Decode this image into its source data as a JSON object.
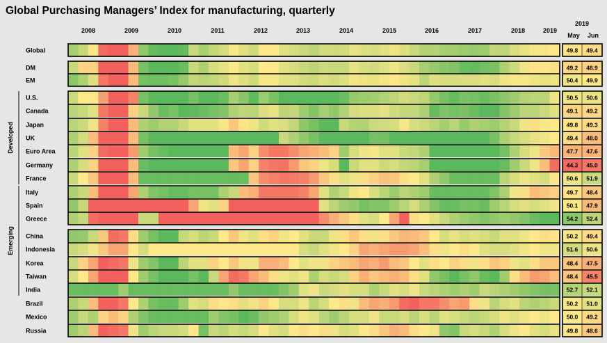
{
  "chart_data": {
    "type": "heatmap",
    "title": "Global Purchasing Managers’ Index for manufacturing, quarterly",
    "years": [
      "2008",
      "2009",
      "2010",
      "2011",
      "2012",
      "2013",
      "2014",
      "2015",
      "2016",
      "2017",
      "2018",
      "2019"
    ],
    "latest_header": {
      "year": "2019",
      "months": [
        "May",
        "Jun"
      ]
    },
    "groups": [
      {
        "label": "Developed",
        "first_row": 3,
        "last_row": 9
      },
      {
        "label": "Emerging",
        "first_row": 10,
        "last_row": 17
      }
    ],
    "color_scale": {
      "low": 44,
      "mid": 50,
      "high": 56,
      "low_color": "#f2615e",
      "mid_color": "#fde98a",
      "high_color": "#5cb85c"
    },
    "rows": [
      {
        "label": "Global",
        "values": [
          53.2,
          52.0,
          50.2,
          44.5,
          42.0,
          43.0,
          47.5,
          54.0,
          55.6,
          56.4,
          56.5,
          55.6,
          52.0,
          53.1,
          52.2,
          51.5,
          50.2,
          51.0,
          51.7,
          50.0,
          50.1,
          51.1,
          51.5,
          51.9,
          52.4,
          51.6,
          51.7,
          51.6,
          50.8,
          51.2,
          51.4,
          51.1,
          50.6,
          51.2,
          51.9,
          52.8,
          52.7,
          53.2,
          53.4,
          53.5,
          53.7,
          53.5,
          52.2,
          52.3,
          51.3,
          50.8,
          50.2,
          50.2,
          50.0
        ],
        "may": "49.8",
        "jun": "49.4"
      },
      {
        "label": "DM",
        "values": [
          52.0,
          49.0,
          49.0,
          44.0,
          42.0,
          43.0,
          48.0,
          55.0,
          56.4,
          56.8,
          56.5,
          55.5,
          52.0,
          53.0,
          51.5,
          50.8,
          50.1,
          51.0,
          51.5,
          50.0,
          49.9,
          51.0,
          51.5,
          52.0,
          52.4,
          51.8,
          52.0,
          52.0,
          50.8,
          51.4,
          51.6,
          51.1,
          50.6,
          51.3,
          52.0,
          53.2,
          53.8,
          54.3,
          54.6,
          55.5,
          55.6,
          55.1,
          54.8,
          53.0,
          51.8,
          50.5,
          49.8,
          49.8,
          49.5
        ],
        "may": "49.2",
        "jun": "48.9"
      },
      {
        "label": "EM",
        "values": [
          54.2,
          53.0,
          51.2,
          45.0,
          44.0,
          44.0,
          48.0,
          55.0,
          55.3,
          55.3,
          54.8,
          53.8,
          52.2,
          52.5,
          52.2,
          51.7,
          50.5,
          51.2,
          51.7,
          50.3,
          50.2,
          51.0,
          51.1,
          51.6,
          51.8,
          51.3,
          51.6,
          51.2,
          50.4,
          50.6,
          50.7,
          50.4,
          50.1,
          50.5,
          50.9,
          52.4,
          51.2,
          51.4,
          51.4,
          51.3,
          51.3,
          51.0,
          51.3,
          50.5,
          50.2,
          50.3,
          50.5,
          50.8,
          50.6
        ],
        "may": "50.4",
        "jun": "49.9"
      },
      {
        "label": "U.S.",
        "values": [
          51.8,
          50.0,
          50.0,
          46.8,
          44.0,
          44.0,
          45.5,
          55.0,
          56.5,
          57.0,
          56.0,
          57.0,
          55.0,
          56.8,
          56.0,
          55.5,
          53.2,
          54.3,
          55.8,
          53.6,
          54.8,
          56.2,
          56.2,
          56.6,
          56.8,
          56.4,
          56.2,
          55.4,
          53.9,
          53.5,
          53.4,
          52.8,
          52.3,
          51.6,
          52.0,
          52.3,
          53.9,
          55.0,
          55.6,
          54.8,
          55.0,
          55.4,
          54.8,
          54.2,
          53.5,
          52.7,
          52.5,
          52.4,
          50.5
        ],
        "may": "50.5",
        "jun": "50.6"
      },
      {
        "label": "Canada",
        "values": [
          52.5,
          52.0,
          51.0,
          45.0,
          43.0,
          43.0,
          49.0,
          52.0,
          54.0,
          55.5,
          55.0,
          56.0,
          55.8,
          55.5,
          55.0,
          54.6,
          52.8,
          52.3,
          52.5,
          51.2,
          50.8,
          52.4,
          52.1,
          53.5,
          54.5,
          53.2,
          54.0,
          52.8,
          51.5,
          51.2,
          51.2,
          50.9,
          51.7,
          52.2,
          52.2,
          53.0,
          55.6,
          54.7,
          55.0,
          54.8,
          55.5,
          56.0,
          56.0,
          54.5,
          53.6,
          52.4,
          52.5,
          51.8,
          51.0
        ],
        "may": "49.1",
        "jun": "49.2"
      },
      {
        "label": "Japan",
        "values": [
          52.5,
          51.8,
          50.5,
          45.5,
          42.0,
          44.0,
          48.0,
          53.0,
          53.5,
          52.8,
          52.8,
          52.0,
          51.0,
          51.0,
          51.0,
          50.2,
          48.5,
          49.8,
          50.6,
          51.7,
          51.0,
          51.3,
          52.2,
          54.2,
          55.0,
          56.5,
          56.4,
          52.0,
          52.7,
          52.8,
          51.8,
          51.6,
          51.4,
          50.2,
          51.4,
          51.8,
          52.5,
          53.3,
          52.5,
          53.8,
          52.9,
          53.2,
          53.5,
          52.7,
          52.0,
          50.5,
          49.5,
          50.2,
          49.9
        ],
        "may": "49.8",
        "jun": "49.3"
      },
      {
        "label": "UK",
        "values": [
          53.0,
          51.5,
          48.0,
          44.0,
          42.0,
          43.0,
          48.0,
          55.0,
          57.0,
          57.0,
          57.0,
          57.0,
          57.0,
          57.0,
          57.0,
          57.0,
          57.0,
          57.0,
          57.0,
          57.0,
          57.0,
          52.0,
          53.0,
          54.0,
          55.0,
          56.0,
          57.0,
          57.0,
          57.0,
          57.0,
          55.0,
          55.0,
          56.0,
          57.0,
          57.0,
          57.0,
          57.0,
          57.0,
          57.0,
          57.0,
          57.0,
          56.0,
          55.0,
          53.0,
          52.0,
          51.5,
          50.8,
          50.5,
          50.0
        ],
        "may": "49.4",
        "jun": "48.0"
      },
      {
        "label": "Euro Area",
        "values": [
          52.5,
          51.0,
          49.0,
          44.5,
          43.0,
          43.0,
          46.5,
          53.5,
          55.0,
          55.5,
          56.0,
          56.0,
          56.0,
          56.0,
          56.0,
          56.0,
          48.0,
          47.0,
          49.0,
          46.0,
          45.0,
          45.0,
          46.0,
          47.0,
          47.5,
          48.0,
          49.0,
          53.5,
          51.5,
          50.5,
          50.2,
          51.0,
          51.0,
          52.0,
          52.2,
          53.0,
          56.5,
          56.5,
          56.5,
          56.5,
          56.5,
          56.5,
          56.5,
          55.0,
          53.0,
          51.5,
          50.5,
          48.5,
          47.8
        ],
        "may": "47.7",
        "jun": "47.6"
      },
      {
        "label": "Germany",
        "values": [
          53.0,
          51.5,
          49.0,
          44.0,
          43.0,
          43.0,
          48.0,
          55.5,
          56.5,
          56.5,
          56.5,
          56.5,
          56.5,
          56.5,
          56.5,
          56.5,
          48.5,
          47.0,
          49.0,
          45.5,
          45.0,
          44.8,
          46.5,
          48.5,
          49.0,
          50.5,
          51.5,
          56.5,
          52.0,
          51.0,
          51.0,
          51.8,
          51.5,
          52.2,
          52.5,
          53.2,
          56.5,
          56.5,
          56.5,
          56.5,
          56.5,
          56.5,
          56.5,
          55.5,
          53.5,
          52.0,
          50.5,
          48.0,
          44.5
        ],
        "may": "44.3",
        "jun": "45.0"
      },
      {
        "label": "France",
        "values": [
          52.0,
          50.0,
          48.5,
          44.0,
          43.0,
          43.0,
          48.0,
          55.5,
          55.5,
          55.5,
          55.5,
          55.5,
          55.5,
          55.5,
          55.5,
          55.5,
          55.5,
          55.5,
          48.5,
          46.0,
          45.5,
          45.0,
          45.2,
          45.5,
          46.5,
          48.5,
          49.5,
          51.0,
          50.5,
          49.5,
          49.0,
          48.2,
          48.5,
          49.5,
          50.0,
          51.0,
          53.0,
          54.0,
          55.5,
          55.5,
          55.5,
          55.5,
          55.5,
          52.5,
          51.5,
          50.5,
          51.0,
          51.5,
          50.2
        ],
        "may": "50.6",
        "jun": "51.9"
      },
      {
        "label": "Italy",
        "values": [
          53.0,
          52.0,
          48.0,
          44.0,
          43.0,
          43.0,
          47.0,
          53.0,
          54.5,
          55.0,
          55.5,
          55.5,
          55.0,
          55.0,
          55.0,
          53.0,
          52.0,
          48.0,
          47.5,
          45.0,
          45.0,
          45.0,
          45.0,
          45.5,
          47.0,
          51.0,
          53.0,
          52.0,
          50.5,
          50.0,
          51.5,
          52.5,
          53.5,
          52.5,
          53.0,
          53.5,
          55.5,
          55.5,
          55.5,
          55.5,
          55.5,
          55.5,
          54.5,
          53.0,
          50.5,
          49.5,
          48.0,
          48.5,
          49.0
        ],
        "may": "49.7",
        "jun": "48.4"
      },
      {
        "label": "Spain",
        "values": [
          54.0,
          52.0,
          44.0,
          44.0,
          44.0,
          44.0,
          44.0,
          44.0,
          44.0,
          44.0,
          44.0,
          44.0,
          47.0,
          50.5,
          51.0,
          49.0,
          44.0,
          44.0,
          44.0,
          44.0,
          44.0,
          44.0,
          44.0,
          44.0,
          44.0,
          51.0,
          52.5,
          53.5,
          54.0,
          55.0,
          54.5,
          54.5,
          53.5,
          52.5,
          51.5,
          53.0,
          54.5,
          55.5,
          55.5,
          55.0,
          55.0,
          55.5,
          53.5,
          52.5,
          51.5,
          51.0,
          51.5,
          51.0,
          50.5
        ],
        "may": "50.1",
        "jun": "47.9"
      },
      {
        "label": "Greece",
        "values": [
          53.0,
          52.0,
          44.5,
          44.0,
          44.0,
          44.0,
          44.0,
          52.0,
          52.0,
          44.0,
          44.0,
          44.0,
          44.0,
          44.0,
          44.0,
          44.0,
          44.0,
          44.0,
          44.0,
          44.0,
          44.0,
          44.0,
          44.0,
          44.0,
          44.0,
          46.0,
          47.5,
          48.5,
          49.5,
          51.0,
          51.5,
          50.0,
          47.0,
          44.0,
          49.5,
          50.0,
          51.0,
          52.0,
          53.0,
          53.5,
          54.0,
          54.5,
          54.0,
          53.5,
          54.0,
          54.5,
          55.5,
          56.5,
          56.0
        ],
        "may": "54.2",
        "jun": "52.4"
      },
      {
        "label": "China",
        "values": [
          54.0,
          53.8,
          52.0,
          48.5,
          44.5,
          45.0,
          49.5,
          53.5,
          55.0,
          56.0,
          56.0,
          52.0,
          51.5,
          52.5,
          52.0,
          50.0,
          48.5,
          50.5,
          51.0,
          49.5,
          49.0,
          50.5,
          50.0,
          51.0,
          52.0,
          52.0,
          50.5,
          49.5,
          48.5,
          49.5,
          50.5,
          49.5,
          48.5,
          47.8,
          48.0,
          48.5,
          50.0,
          51.5,
          50.8,
          51.5,
          51.0,
          51.5,
          52.0,
          51.0,
          51.0,
          50.5,
          50.0,
          49.5,
          49.8
        ],
        "may": "50.2",
        "jun": "49.4"
      },
      {
        "label": "Indonesia",
        "values": [
          52.0,
          51.5,
          50.5,
          48.5,
          47.0,
          47.0,
          50.0,
          51.5,
          50.0,
          50.0,
          50.0,
          50.0,
          50.0,
          50.0,
          50.0,
          50.0,
          50.0,
          50.0,
          50.0,
          50.0,
          50.0,
          50.0,
          50.0,
          51.5,
          52.0,
          51.0,
          50.5,
          50.0,
          49.0,
          47.0,
          47.5,
          47.0,
          46.5,
          46.5,
          47.0,
          48.0,
          49.5,
          50.5,
          50.0,
          49.5,
          50.0,
          51.0,
          51.5,
          51.5,
          51.0,
          50.5,
          50.0,
          50.5,
          50.5
        ],
        "may": "51.6",
        "jun": "50.6"
      },
      {
        "label": "Korea",
        "values": [
          52.0,
          49.0,
          47.0,
          44.0,
          44.5,
          45.0,
          50.5,
          53.5,
          54.5,
          56.0,
          56.0,
          52.5,
          51.0,
          51.0,
          49.0,
          50.0,
          48.5,
          50.5,
          50.5,
          47.5,
          47.5,
          48.0,
          50.0,
          51.0,
          50.5,
          50.5,
          49.0,
          48.5,
          48.0,
          47.0,
          47.5,
          46.5,
          48.0,
          48.5,
          50.0,
          51.0,
          49.5,
          50.0,
          49.0,
          49.5,
          50.5,
          49.5,
          48.5,
          49.0,
          50.5,
          51.0,
          49.5,
          48.5,
          48.5
        ],
        "may": "48.4",
        "jun": "47.5"
      },
      {
        "label": "Taiwan",
        "values": [
          51.5,
          50.0,
          47.0,
          44.0,
          44.0,
          44.0,
          50.0,
          53.5,
          55.0,
          56.0,
          56.0,
          56.0,
          55.0,
          56.0,
          52.0,
          47.0,
          44.5,
          45.0,
          47.0,
          48.0,
          49.5,
          50.5,
          51.0,
          50.5,
          53.0,
          51.5,
          52.0,
          51.5,
          49.0,
          47.5,
          48.5,
          48.0,
          47.5,
          48.0,
          49.5,
          51.0,
          54.0,
          55.0,
          56.0,
          55.0,
          54.0,
          55.5,
          56.0,
          53.5,
          49.5,
          48.0,
          46.5,
          47.0,
          48.0
        ],
        "may": "48.4",
        "jun": "45.5"
      },
      {
        "label": "India",
        "values": [
          55.5,
          55.5,
          55.5,
          55.5,
          55.5,
          53.5,
          55.5,
          55.5,
          55.5,
          55.5,
          55.5,
          55.5,
          55.5,
          55.5,
          55.5,
          55.5,
          54.0,
          55.5,
          55.5,
          55.5,
          55.5,
          54.5,
          53.5,
          51.0,
          50.5,
          52.0,
          51.5,
          51.0,
          51.5,
          51.5,
          53.0,
          52.0,
          51.0,
          51.5,
          50.5,
          52.0,
          52.5,
          53.0,
          53.5,
          53.0,
          53.5,
          52.0,
          52.5,
          53.0,
          53.5,
          54.0,
          54.5,
          55.0,
          55.0
        ],
        "may": "52.7",
        "jun": "52.1"
      },
      {
        "label": "Brazil",
        "values": [
          53.0,
          52.0,
          48.0,
          44.0,
          44.0,
          45.0,
          50.0,
          53.0,
          55.0,
          55.5,
          55.5,
          53.5,
          51.0,
          51.5,
          49.5,
          50.0,
          49.5,
          51.0,
          50.5,
          49.0,
          50.0,
          51.5,
          51.5,
          50.5,
          52.5,
          51.5,
          50.0,
          49.5,
          50.5,
          48.0,
          47.0,
          47.5,
          46.5,
          44.5,
          44.0,
          45.0,
          45.0,
          46.0,
          47.0,
          46.5,
          49.5,
          50.5,
          52.5,
          51.5,
          51.0,
          52.5,
          53.0,
          52.5,
          52.0
        ],
        "may": "50.2",
        "jun": "51.0"
      },
      {
        "label": "Mexico",
        "values": [
          53.5,
          52.0,
          53.0,
          49.0,
          48.0,
          49.0,
          53.0,
          54.5,
          55.5,
          55.5,
          55.5,
          55.5,
          55.5,
          55.5,
          53.5,
          54.5,
          55.0,
          56.0,
          55.5,
          54.0,
          53.5,
          53.0,
          51.5,
          50.5,
          51.0,
          52.5,
          53.5,
          52.5,
          51.5,
          51.5,
          50.5,
          52.0,
          52.0,
          51.5,
          52.5,
          51.5,
          52.5,
          51.0,
          51.5,
          52.0,
          52.5,
          52.0,
          51.5,
          50.5,
          51.0,
          50.5,
          50.0,
          50.5,
          50.0
        ],
        "may": "50.0",
        "jun": "49.2"
      },
      {
        "label": "Russia",
        "values": [
          53.5,
          52.5,
          48.0,
          44.0,
          44.5,
          45.0,
          50.5,
          53.5,
          52.5,
          52.0,
          52.0,
          51.5,
          50.0,
          55.0,
          52.0,
          52.5,
          51.5,
          52.0,
          51.5,
          50.0,
          51.0,
          51.5,
          50.0,
          49.5,
          50.0,
          49.5,
          50.5,
          51.5,
          51.0,
          50.0,
          49.5,
          48.5,
          47.5,
          48.0,
          49.5,
          50.0,
          50.5,
          54.0,
          54.5,
          52.0,
          51.5,
          52.0,
          53.0,
          51.5,
          50.5,
          50.0,
          51.0,
          51.5,
          50.8
        ],
        "may": "49.8",
        "jun": "48.6"
      }
    ]
  }
}
